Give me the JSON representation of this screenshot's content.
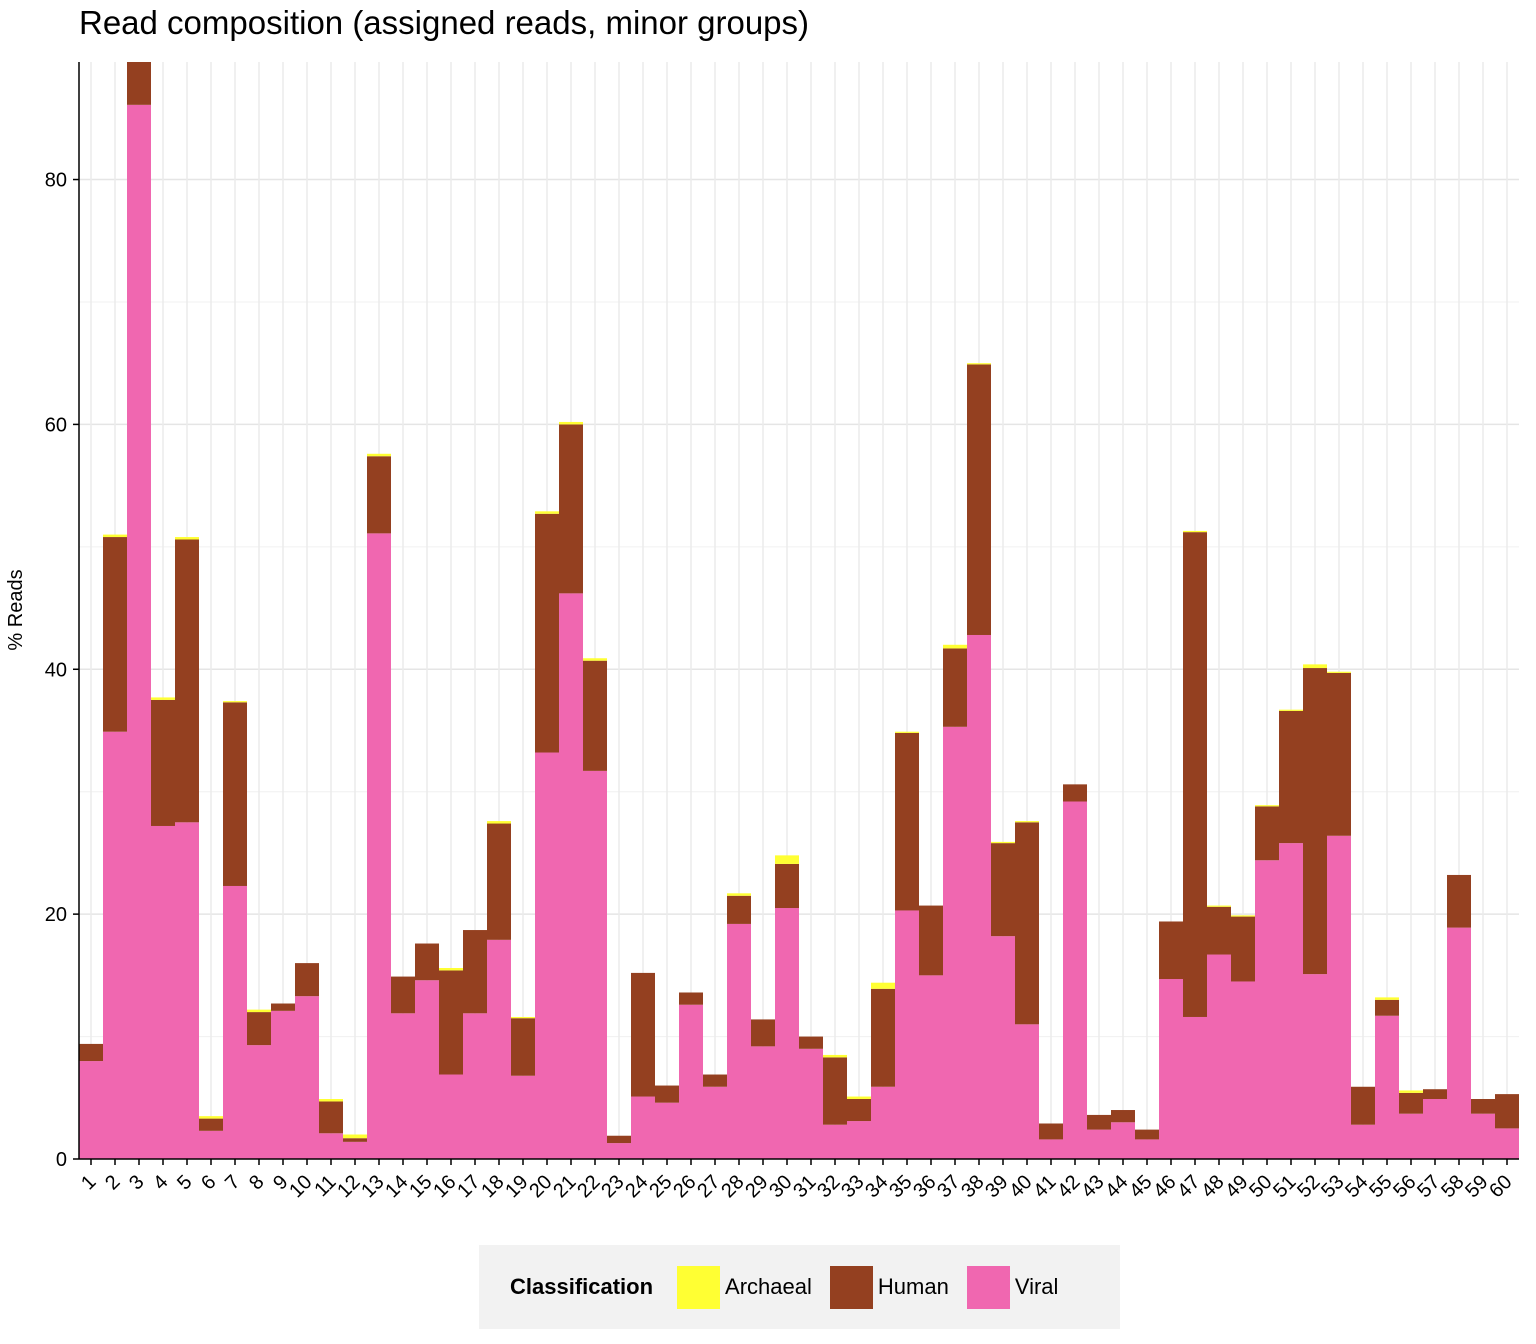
{
  "chart_data": {
    "type": "bar",
    "stacked": true,
    "title": "Read composition (assigned reads, minor groups)",
    "xlabel": "",
    "ylabel": "% Reads",
    "ylim": [
      0,
      89.6
    ],
    "yticks": [
      0,
      20,
      40,
      60,
      80
    ],
    "grid": true,
    "legend": {
      "title": "Classification",
      "placement": "bottom"
    },
    "categories": [
      "1",
      "2",
      "3",
      "4",
      "5",
      "6",
      "7",
      "8",
      "9",
      "10",
      "11",
      "12",
      "13",
      "14",
      "15",
      "16",
      "17",
      "18",
      "19",
      "20",
      "21",
      "22",
      "23",
      "24",
      "25",
      "26",
      "27",
      "28",
      "29",
      "30",
      "31",
      "32",
      "33",
      "34",
      "35",
      "36",
      "37",
      "38",
      "39",
      "40",
      "41",
      "42",
      "43",
      "44",
      "45",
      "46",
      "47",
      "48",
      "49",
      "50",
      "51",
      "52",
      "53",
      "54",
      "55",
      "56",
      "57",
      "58",
      "59",
      "60"
    ],
    "series": [
      {
        "name": "Viral",
        "color": "#f067b0",
        "values": [
          8.0,
          34.9,
          86.1,
          27.2,
          27.5,
          2.3,
          22.3,
          9.3,
          12.1,
          13.3,
          2.1,
          1.4,
          51.1,
          11.9,
          14.6,
          6.9,
          11.9,
          17.9,
          6.8,
          33.2,
          46.2,
          31.7,
          1.3,
          5.1,
          4.6,
          12.6,
          5.9,
          19.2,
          9.2,
          20.5,
          9.0,
          2.8,
          3.1,
          5.9,
          20.3,
          15.0,
          35.3,
          42.8,
          18.2,
          11.0,
          1.6,
          29.2,
          2.4,
          3.0,
          1.6,
          14.7,
          11.6,
          16.7,
          14.5,
          24.4,
          25.8,
          15.1,
          26.4,
          2.8,
          11.7,
          3.7,
          4.9,
          18.9,
          3.7,
          2.5
        ]
      },
      {
        "name": "Human",
        "color": "#944020",
        "values": [
          1.4,
          15.9,
          3.5,
          10.3,
          23.1,
          1.0,
          15.0,
          2.7,
          0.6,
          2.7,
          2.6,
          0.3,
          6.3,
          3.0,
          3.0,
          8.5,
          6.8,
          9.5,
          4.7,
          19.5,
          13.8,
          9.0,
          0.6,
          10.1,
          1.4,
          1.0,
          1.0,
          2.3,
          2.2,
          3.6,
          1.0,
          5.5,
          1.8,
          8.0,
          14.5,
          5.7,
          6.4,
          22.1,
          7.6,
          16.5,
          1.3,
          1.4,
          1.2,
          1.0,
          0.8,
          4.7,
          39.6,
          3.9,
          5.3,
          4.4,
          10.8,
          25.0,
          13.3,
          3.1,
          1.3,
          1.7,
          0.8,
          4.3,
          1.2,
          2.8
        ]
      },
      {
        "name": "Archaeal",
        "color": "#ffff33",
        "values": [
          0.0,
          0.2,
          0.0,
          0.2,
          0.2,
          0.2,
          0.1,
          0.2,
          0.0,
          0.0,
          0.2,
          0.3,
          0.2,
          0.0,
          0.0,
          0.2,
          0.0,
          0.2,
          0.1,
          0.2,
          0.2,
          0.2,
          0.0,
          0.0,
          0.0,
          0.0,
          0.0,
          0.2,
          0.0,
          0.7,
          0.0,
          0.2,
          0.2,
          0.5,
          0.1,
          0.0,
          0.3,
          0.1,
          0.1,
          0.1,
          0.0,
          0.0,
          0.0,
          0.0,
          0.0,
          0.0,
          0.1,
          0.1,
          0.1,
          0.1,
          0.1,
          0.3,
          0.1,
          0.0,
          0.2,
          0.2,
          0.0,
          0.0,
          0.0,
          0.0
        ]
      }
    ]
  },
  "legend_order": [
    "Archaeal",
    "Human",
    "Viral"
  ]
}
